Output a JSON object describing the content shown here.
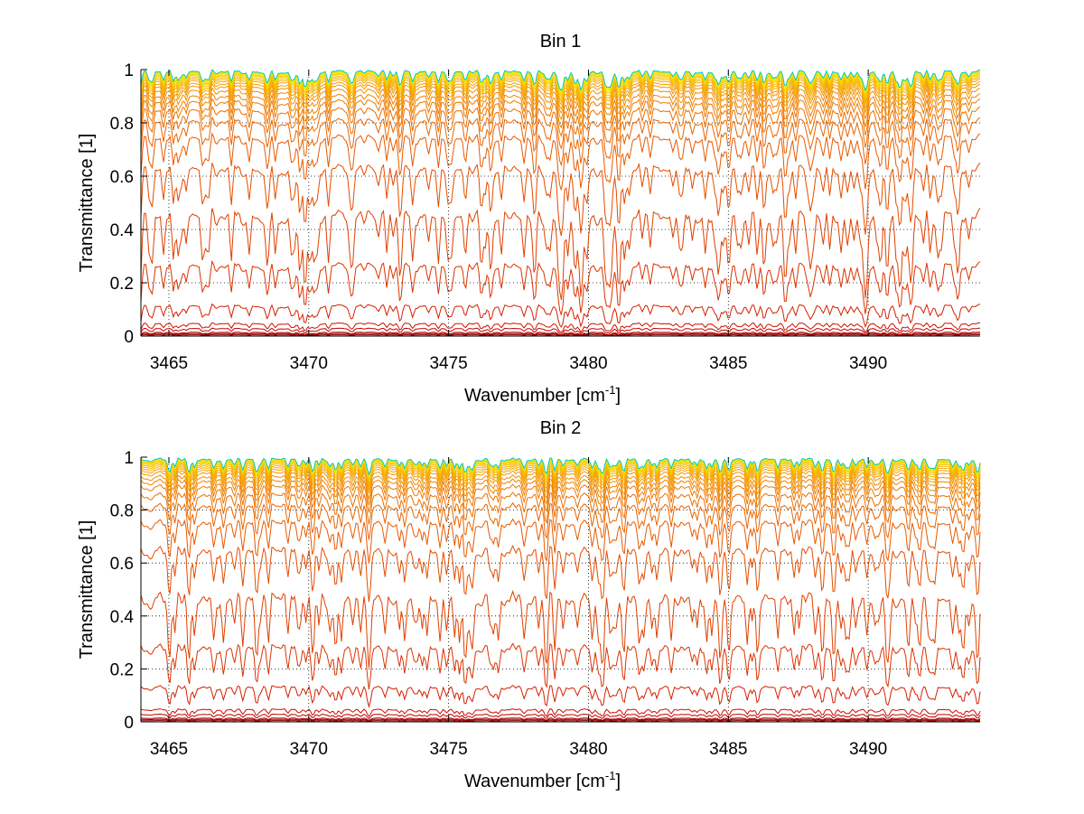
{
  "chart_data": [
    {
      "type": "line",
      "title": "Bin 1",
      "xlabel": "Wavenumber [cm",
      "xlabel_sup": "-1",
      "xlabel_end": "]",
      "ylabel": "Transmittance [1]",
      "xlim": [
        3464,
        3494
      ],
      "ylim": [
        0,
        1
      ],
      "xticks": [
        3465,
        3470,
        3475,
        3480,
        3485,
        3490
      ],
      "yticks": [
        0,
        0.2,
        0.4,
        0.6,
        0.8,
        1
      ],
      "ytick_labels": [
        "0",
        "0.2",
        "0.4",
        "0.6",
        "0.8",
        "1"
      ],
      "grid": true,
      "series_baselines": [
        0.0,
        0.005,
        0.01,
        0.015,
        0.03,
        0.05,
        0.12,
        0.28,
        0.48,
        0.65,
        0.76,
        0.82,
        0.86,
        0.89,
        0.91,
        0.93,
        0.945,
        0.955,
        0.965,
        0.972,
        0.978,
        0.984,
        0.988,
        0.992,
        0.995,
        0.997,
        0.999
      ],
      "line_colors": [
        "#7a0000",
        "#8b0000",
        "#9c0000",
        "#ad0000",
        "#bf0000",
        "#cc1000",
        "#d42000",
        "#db3300",
        "#e04000",
        "#e44d00",
        "#e85a00",
        "#ea6400",
        "#ec6e00",
        "#ee7800",
        "#f08200",
        "#f18c00",
        "#f39600",
        "#f4a000",
        "#f5aa00",
        "#f6b400",
        "#f7be00",
        "#f8c800",
        "#f9d200",
        "#fadc00",
        "#fbe600",
        "#e6f000",
        "#00c8c8"
      ]
    },
    {
      "type": "line",
      "title": "Bin 2",
      "xlabel": "Wavenumber [cm",
      "xlabel_sup": "-1",
      "xlabel_end": "]",
      "ylabel": "Transmittance [1]",
      "xlim": [
        3464,
        3494
      ],
      "ylim": [
        0,
        1
      ],
      "xticks": [
        3465,
        3470,
        3475,
        3480,
        3485,
        3490
      ],
      "yticks": [
        0,
        0.2,
        0.4,
        0.6,
        0.8,
        1
      ],
      "ytick_labels": [
        "0",
        "0.2",
        "0.4",
        "0.6",
        "0.8",
        "1"
      ],
      "grid": true,
      "series_baselines": [
        0.0,
        0.005,
        0.01,
        0.015,
        0.03,
        0.05,
        0.14,
        0.3,
        0.5,
        0.67,
        0.77,
        0.83,
        0.87,
        0.9,
        0.92,
        0.935,
        0.95,
        0.96,
        0.968,
        0.975,
        0.981,
        0.986,
        0.99,
        0.993,
        0.996,
        0.998,
        0.999
      ],
      "line_colors": [
        "#7a0000",
        "#8b0000",
        "#9c0000",
        "#ad0000",
        "#bf0000",
        "#cc1000",
        "#d42000",
        "#db3300",
        "#e04000",
        "#e44d00",
        "#e85a00",
        "#ea6400",
        "#ec6e00",
        "#ee7800",
        "#f08200",
        "#f18c00",
        "#f39600",
        "#f4a000",
        "#f5aa00",
        "#f6b400",
        "#f7be00",
        "#f8c800",
        "#f9d200",
        "#fadc00",
        "#fbe600",
        "#e6f000",
        "#00c8c8"
      ]
    }
  ]
}
